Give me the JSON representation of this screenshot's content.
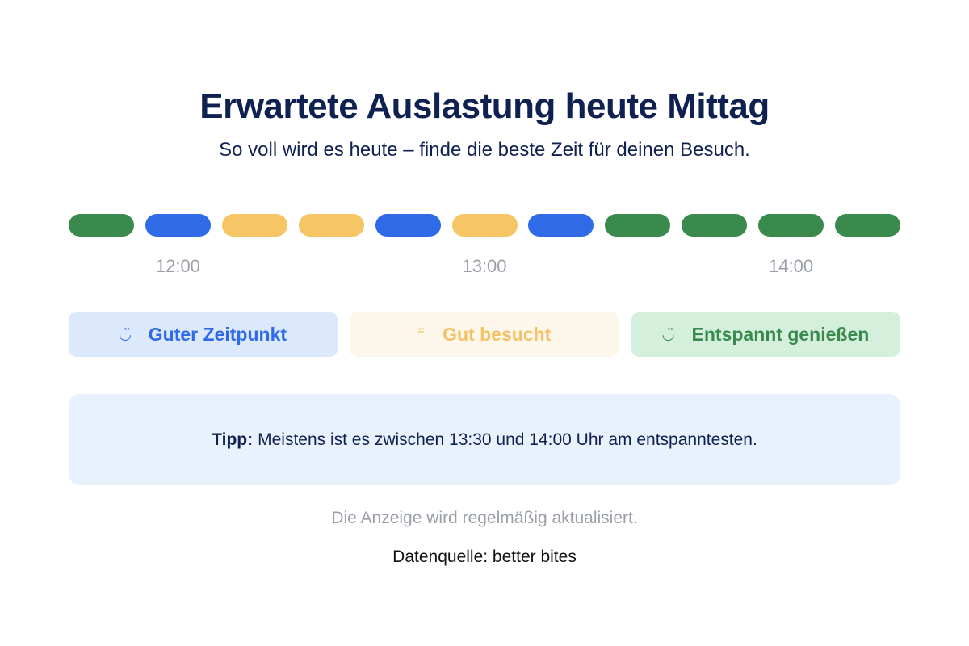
{
  "header": {
    "title": "Erwartete Auslastung heute Mittag",
    "subtitle": "So voll wird es heute – finde die beste Zeit für deinen Besuch."
  },
  "timeline": {
    "segments": [
      {
        "level": "relaxed"
      },
      {
        "level": "good"
      },
      {
        "level": "busy"
      },
      {
        "level": "busy"
      },
      {
        "level": "good"
      },
      {
        "level": "busy"
      },
      {
        "level": "good"
      },
      {
        "level": "relaxed"
      },
      {
        "level": "relaxed"
      },
      {
        "level": "relaxed"
      },
      {
        "level": "relaxed"
      }
    ],
    "time_labels": [
      {
        "label": "12:00",
        "segment_index": 1
      },
      {
        "label": "13:00",
        "segment_index": 5
      },
      {
        "label": "14:00",
        "segment_index": 9
      }
    ]
  },
  "legend": {
    "items": [
      {
        "key": "good",
        "label": "Guter Zeitpunkt",
        "icon": "smile-icon",
        "glyph": "◡̈",
        "color": "#2f6be6",
        "background": "#dce8fb"
      },
      {
        "key": "busy",
        "label": "Gut besucht",
        "icon": "neutral-face-icon",
        "glyph": "⁻̈",
        "color": "#f4c266",
        "background": "#fdf7eb"
      },
      {
        "key": "relaxed",
        "label": "Entspannt genießen",
        "icon": "smile-icon",
        "glyph": "◡̈",
        "color": "#3a8a4e",
        "background": "#d5efdd"
      }
    ]
  },
  "colors": {
    "good": "#2f6be6",
    "busy": "#f5c566",
    "relaxed": "#3a8a4e"
  },
  "tip": {
    "label": "Tipp:",
    "text": "Meistens ist es zwischen 13:30 und 14:00 Uhr am entspanntesten."
  },
  "footer": {
    "note": "Die Anzeige wird regelmäßig aktualisiert.",
    "source": "Datenquelle: better bites"
  }
}
